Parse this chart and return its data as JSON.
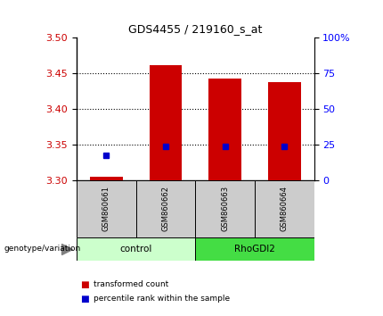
{
  "title": "GDS4455 / 219160_s_at",
  "samples": [
    "GSM860661",
    "GSM860662",
    "GSM860663",
    "GSM860664"
  ],
  "groups": [
    "control",
    "control",
    "RhoGDI2",
    "RhoGDI2"
  ],
  "red_bar_values": [
    3.305,
    3.462,
    3.443,
    3.438
  ],
  "blue_square_values": [
    3.335,
    3.348,
    3.348,
    3.348
  ],
  "ylim_left": [
    3.3,
    3.5
  ],
  "ylim_right": [
    0,
    100
  ],
  "yticks_left": [
    3.3,
    3.35,
    3.4,
    3.45,
    3.5
  ],
  "yticks_right": [
    0,
    25,
    50,
    75,
    100
  ],
  "ytick_labels_right": [
    "0",
    "25",
    "50",
    "75",
    "100%"
  ],
  "red_color": "#cc0000",
  "blue_color": "#0000cc",
  "control_color": "#ccffcc",
  "rhodgi2_color": "#44dd44",
  "sample_bg_color": "#cccccc",
  "bar_bottom": 3.3,
  "bar_width": 0.55,
  "legend_red_label": "transformed count",
  "legend_blue_label": "percentile rank within the sample",
  "group_label": "genotype/variation"
}
